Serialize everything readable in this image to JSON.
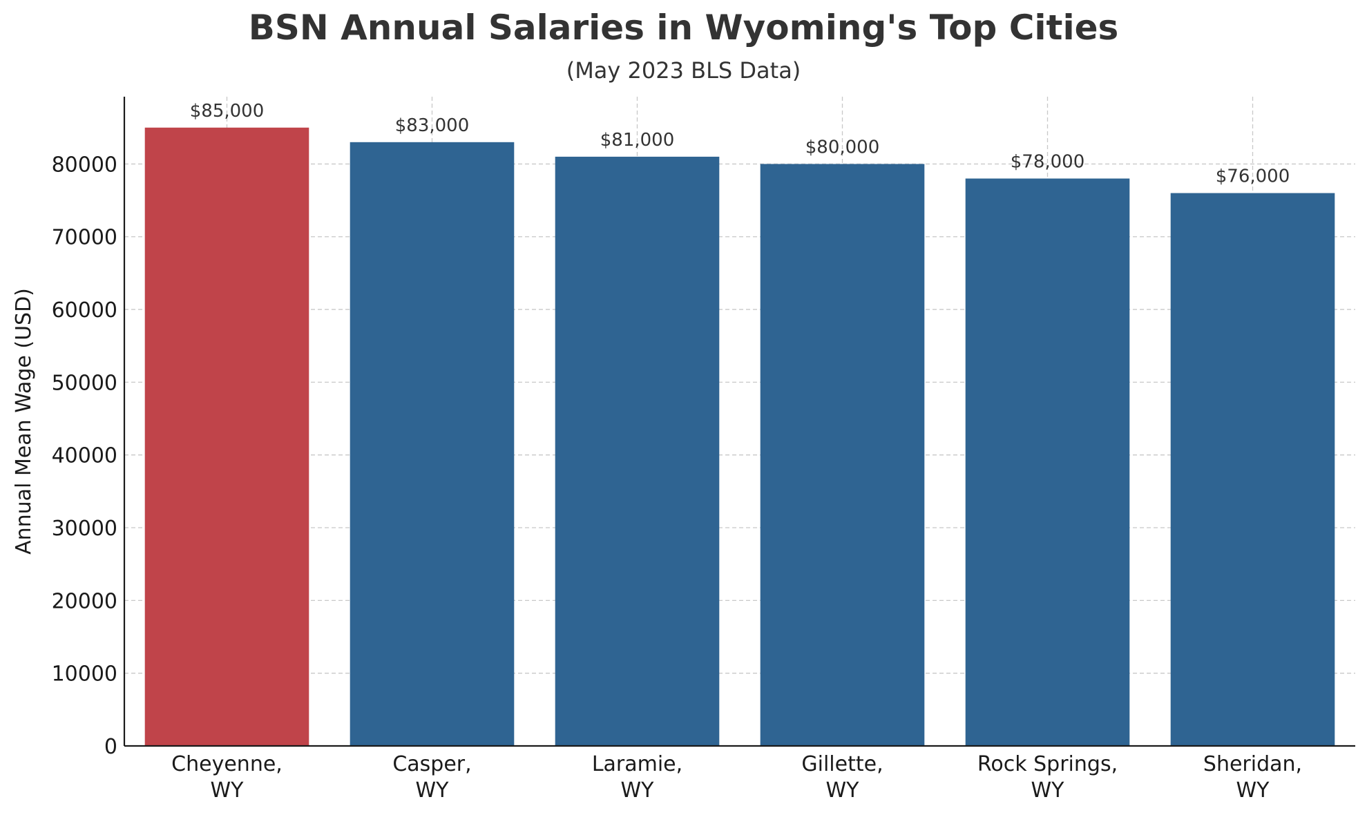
{
  "chart_data": {
    "type": "bar",
    "title": "BSN Annual Salaries in Wyoming's Top Cities",
    "subtitle": "(May 2023 BLS Data)",
    "xlabel": "",
    "ylabel": "Annual Mean Wage (USD)",
    "categories": [
      [
        "Cheyenne,",
        "WY"
      ],
      [
        "Casper,",
        "WY"
      ],
      [
        "Laramie,",
        "WY"
      ],
      [
        "Gillette,",
        "WY"
      ],
      [
        "Rock Springs,",
        "WY"
      ],
      [
        "Sheridan,",
        "WY"
      ]
    ],
    "values": [
      85000,
      83000,
      81000,
      80000,
      78000,
      76000
    ],
    "data_labels": [
      "$85,000",
      "$83,000",
      "$81,000",
      "$80,000",
      "$78,000",
      "$76,000"
    ],
    "ylim": [
      0,
      89250
    ],
    "yticks": [
      0,
      10000,
      20000,
      30000,
      40000,
      50000,
      60000,
      70000,
      80000
    ],
    "ytick_labels": [
      "0",
      "10000",
      "20000",
      "30000",
      "40000",
      "50000",
      "60000",
      "70000",
      "80000"
    ],
    "grid": true,
    "highlight_index": 0,
    "colors": {
      "highlight": "#c0444a",
      "bar": "#2f6492",
      "grid": "#c8c8c8",
      "axis": "#1a1a1a"
    }
  }
}
